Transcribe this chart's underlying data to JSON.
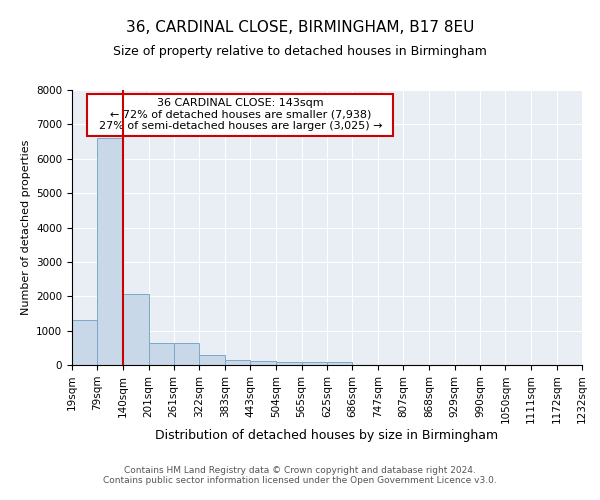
{
  "title1": "36, CARDINAL CLOSE, BIRMINGHAM, B17 8EU",
  "title2": "Size of property relative to detached houses in Birmingham",
  "xlabel": "Distribution of detached houses by size in Birmingham",
  "ylabel": "Number of detached properties",
  "annotation_title": "36 CARDINAL CLOSE: 143sqm",
  "annotation_line1": "← 72% of detached houses are smaller (7,938)",
  "annotation_line2": "27% of semi-detached houses are larger (3,025) →",
  "bin_edges": [
    19,
    79,
    140,
    201,
    261,
    322,
    383,
    443,
    504,
    565,
    625,
    686,
    747,
    807,
    868,
    929,
    990,
    1050,
    1111,
    1172,
    1232
  ],
  "bar_values": [
    1300,
    6600,
    2080,
    640,
    640,
    300,
    150,
    110,
    90,
    80,
    80,
    0,
    0,
    0,
    0,
    0,
    0,
    0,
    0,
    0
  ],
  "bar_color": "#c8d8e8",
  "bar_edge_color": "#7aaac8",
  "vline_color": "#cc0000",
  "vline_x": 140,
  "background_color": "#e8eef4",
  "annotation_box_facecolor": "#ffffff",
  "annotation_box_edgecolor": "#cc0000",
  "footer1": "Contains HM Land Registry data © Crown copyright and database right 2024.",
  "footer2": "Contains public sector information licensed under the Open Government Licence v3.0.",
  "ylim": [
    0,
    8000
  ],
  "yticks": [
    0,
    1000,
    2000,
    3000,
    4000,
    5000,
    6000,
    7000,
    8000
  ],
  "title1_fontsize": 11,
  "title2_fontsize": 9,
  "ylabel_fontsize": 8,
  "xlabel_fontsize": 9,
  "tick_fontsize": 7.5,
  "footer_fontsize": 6.5
}
